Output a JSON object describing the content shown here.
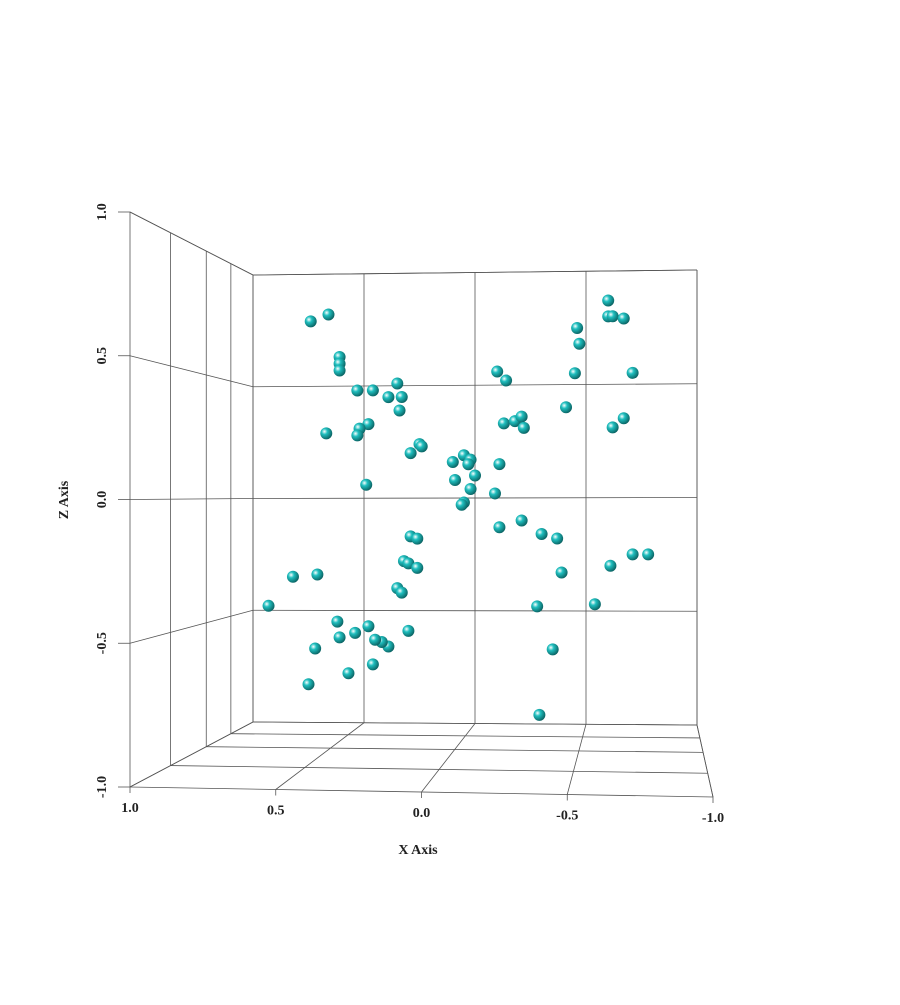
{
  "chart_data": {
    "type": "scatter3d",
    "x_label": "X Axis",
    "z_label": "Z Axis",
    "color": "#1fbfbf",
    "xlim": [
      1.0,
      -1.0
    ],
    "xticks": [
      {
        "value": 1.0,
        "label": "1.0"
      },
      {
        "value": 0.5,
        "label": "0.5"
      },
      {
        "value": 0.0,
        "label": "0.0"
      },
      {
        "value": -0.5,
        "label": "-0.5"
      },
      {
        "value": -1.0,
        "label": "-1.0"
      }
    ],
    "zlim": [
      -1.0,
      1.0
    ],
    "zticks": [
      {
        "value": -1.0,
        "label": "-1.0"
      },
      {
        "value": -0.5,
        "label": "-0.5"
      },
      {
        "value": 0.0,
        "label": "0.0"
      },
      {
        "value": 0.5,
        "label": "0.5"
      },
      {
        "value": 1.0,
        "label": "1.0"
      }
    ],
    "grid": true,
    "x": [
      0.74,
      0.66,
      0.61,
      0.61,
      0.61,
      0.53,
      0.46,
      0.35,
      0.39,
      0.33,
      0.34,
      0.48,
      0.52,
      0.53,
      0.67,
      0.25,
      0.24,
      0.29,
      0.49,
      0.1,
      0.05,
      0.02,
      0.03,
      0.0,
      0.09,
      0.02,
      0.05,
      0.06,
      -0.09,
      -0.11,
      -0.1,
      -0.14,
      -0.13,
      -0.18,
      -0.21,
      -0.22,
      -0.41,
      -0.45,
      -0.47,
      -0.46,
      -0.6,
      -0.6,
      -0.62,
      -0.67,
      -0.71,
      -0.67,
      -0.62,
      -0.11,
      -0.21,
      -0.3,
      -0.37,
      -0.39,
      -0.28,
      -0.35,
      -0.29,
      -0.54,
      -0.61,
      -0.71,
      -0.78,
      0.29,
      0.26,
      0.32,
      0.3,
      0.26,
      0.35,
      0.33,
      0.3,
      0.39,
      0.42,
      0.48,
      0.54,
      0.62,
      0.61,
      0.45,
      0.46,
      0.57,
      0.72,
      0.75,
      0.82,
      0.71,
      0.93
    ],
    "values": [
      0.79,
      0.82,
      0.63,
      0.6,
      0.57,
      0.48,
      0.48,
      0.51,
      0.45,
      0.45,
      0.39,
      0.33,
      0.31,
      0.28,
      0.29,
      0.24,
      0.23,
      0.2,
      0.06,
      0.16,
      0.19,
      0.17,
      0.15,
      0.1,
      0.08,
      0.04,
      -0.02,
      -0.03,
      0.02,
      0.15,
      0.56,
      0.52,
      0.33,
      0.34,
      0.36,
      0.31,
      0.4,
      0.55,
      0.68,
      0.75,
      0.87,
      0.8,
      0.8,
      0.79,
      0.55,
      0.35,
      0.31,
      -0.13,
      -0.1,
      -0.16,
      -0.18,
      -0.33,
      -0.48,
      -0.67,
      -0.96,
      -0.47,
      -0.3,
      -0.25,
      -0.25,
      -0.17,
      -0.18,
      -0.28,
      -0.29,
      -0.31,
      -0.4,
      -0.42,
      -0.59,
      -0.66,
      -0.64,
      -0.57,
      -0.6,
      -0.55,
      -0.62,
      -0.63,
      -0.74,
      -0.78,
      -0.67,
      -0.83,
      -0.35,
      -0.34,
      -0.48
    ]
  }
}
